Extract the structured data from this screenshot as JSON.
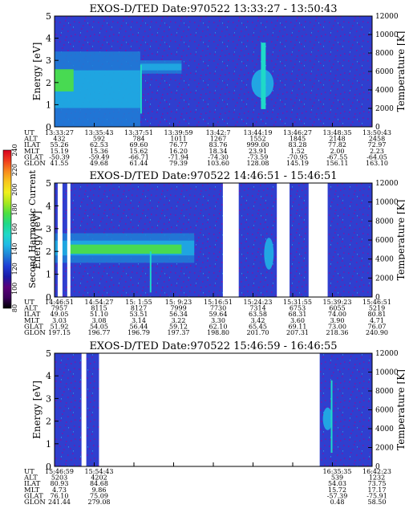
{
  "chart_data": [
    {
      "type": "heatmap",
      "title": "EXOS-D/TED   Date:970522   13:33:27 - 13:50:43",
      "ylabel": "Energy [eV]",
      "ylim": [
        0,
        5
      ],
      "yticks": [
        0,
        1,
        2,
        3,
        4,
        5
      ],
      "y2label": "Temperature [K]",
      "y2lim": [
        0,
        12000
      ],
      "y2ticks": [
        0,
        2000,
        4000,
        6000,
        8000,
        10000,
        12000
      ],
      "x": [
        "13:33:27",
        "13:35:43",
        "13:37:51",
        "13:39:59",
        "13:42:7",
        "13:44:19",
        "13:46:27",
        "13:48:35",
        "13:50:43"
      ],
      "rows": [
        {
          "name": "UT",
          "values": [
            "13:33:27",
            "13:35:43",
            "13:37:51",
            "13:39:59",
            "13:42:7",
            "13:44:19",
            "13:46:27",
            "13:48:35",
            "13:50:43"
          ]
        },
        {
          "name": "ALT",
          "values": [
            "432",
            "592",
            "784",
            "1011",
            "1267",
            "1552",
            "1845",
            "2148",
            "2458"
          ]
        },
        {
          "name": "ILAT",
          "values": [
            "55.26",
            "62.53",
            "69.60",
            "76.77",
            "83.76",
            "999.00",
            "83.28",
            "77.82",
            "72.97"
          ]
        },
        {
          "name": "MLT",
          "values": [
            "15.19",
            "15.36",
            "15.62",
            "16.20",
            "18.34",
            "23.91",
            "1.52",
            "2.00",
            "2.23"
          ]
        },
        {
          "name": "GLAT",
          "values": [
            "-50.39",
            "-59.49",
            "-66.71",
            "-71.94",
            "-74.30",
            "-73.59",
            "-70.95",
            "-67.55",
            "-64.05"
          ]
        },
        {
          "name": "GLON",
          "values": [
            "41.55",
            "49.68",
            "61.44",
            "79.39",
            "103.60",
            "128.08",
            "145.19",
            "156.11",
            "163.10"
          ]
        }
      ],
      "features": [
        {
          "kind": "band",
          "t0": 0.0,
          "t1": 0.27,
          "e0": 0.0,
          "e1": 3.4
        },
        {
          "kind": "core",
          "t0": 0.0,
          "t1": 0.06,
          "e0": 1.6,
          "e1": 2.6
        },
        {
          "kind": "band",
          "t0": 0.27,
          "t1": 0.4,
          "e0": 2.4,
          "e1": 3.0
        },
        {
          "kind": "blob",
          "t0": 0.62,
          "t1": 0.69,
          "e0": 1.3,
          "e1": 2.6
        },
        {
          "kind": "spike",
          "t0": 0.65,
          "t1": 0.665,
          "e0": 0.8,
          "e1": 3.8
        },
        {
          "kind": "spike",
          "t0": 0.27,
          "t1": 0.275,
          "e0": 0.6,
          "e1": 2.8
        }
      ],
      "gaps": []
    },
    {
      "type": "heatmap",
      "title": "EXOS-D/TED   Date:970522   14:46:51 - 15:46:51",
      "ylabel": "Energy [eV]",
      "ylim": [
        0,
        5
      ],
      "yticks": [
        0,
        1,
        2,
        3,
        4,
        5
      ],
      "y2label": "Temperature [K]",
      "y2lim": [
        0,
        12000
      ],
      "y2ticks": [
        0,
        2000,
        4000,
        6000,
        8000,
        10000,
        12000
      ],
      "x": [
        "14:46:51",
        "14:54:27",
        "15: 1:55",
        "15: 9:23",
        "15:16:51",
        "15:24:23",
        "15:31:55",
        "15:39:23",
        "15:46:51"
      ],
      "rows": [
        {
          "name": "UT",
          "values": [
            "14:46:51",
            "14:54:27",
            "15: 1:55",
            "15: 9:23",
            "15:16:51",
            "15:24:23",
            "15:31:55",
            "15:39:23",
            "15:46:51"
          ]
        },
        {
          "name": "ALT",
          "values": [
            "7957",
            "8115",
            "8127",
            "7999",
            "7730",
            "7314",
            "6753",
            "6055",
            "5219"
          ]
        },
        {
          "name": "ILAT",
          "values": [
            "49.05",
            "51.10",
            "53.51",
            "56.34",
            "59.64",
            "63.58",
            "68.31",
            "74.00",
            "80.81"
          ]
        },
        {
          "name": "MLT",
          "values": [
            "3.03",
            "3.08",
            "3.14",
            "3.22",
            "3.30",
            "3.42",
            "3.60",
            "3.90",
            "4.71"
          ]
        },
        {
          "name": "GLAT",
          "values": [
            "51.92",
            "54.05",
            "56.44",
            "59.12",
            "62.10",
            "65.45",
            "69.11",
            "73.00",
            "76.07"
          ]
        },
        {
          "name": "GLON",
          "values": [
            "197.15",
            "196.77",
            "196.79",
            "197.37",
            "198.80",
            "201.70",
            "207.31",
            "218.36",
            "240.90"
          ]
        }
      ],
      "features": [
        {
          "kind": "band",
          "t0": 0.0,
          "t1": 0.44,
          "e0": 1.5,
          "e1": 2.8
        },
        {
          "kind": "core",
          "t0": 0.04,
          "t1": 0.4,
          "e0": 1.9,
          "e1": 2.3
        },
        {
          "kind": "spike",
          "t0": 0.3,
          "t1": 0.305,
          "e0": 0.2,
          "e1": 2.0
        },
        {
          "kind": "blob",
          "t0": 0.66,
          "t1": 0.69,
          "e0": 1.2,
          "e1": 2.6
        }
      ],
      "gaps": [
        [
          0.01,
          0.025
        ],
        [
          0.04,
          0.05
        ],
        [
          0.53,
          0.58
        ],
        [
          0.7,
          0.74
        ],
        [
          0.8,
          0.86
        ]
      ],
      "colorbar": {
        "label": "Second Harmonic Current",
        "ticks": [
          80,
          100,
          120,
          140,
          160,
          180,
          200,
          220,
          240
        ],
        "colors": [
          "#000000",
          "#3a005a",
          "#5a007a",
          "#1a1aa8",
          "#1f3dd6",
          "#1f7fd6",
          "#1fb9e6",
          "#1fd9c8",
          "#1fd98a",
          "#4ce042",
          "#a8e81e",
          "#f0f01e",
          "#f8c81e",
          "#f88a1e",
          "#f03c1e",
          "#d8001e"
        ]
      }
    },
    {
      "type": "heatmap",
      "title": "EXOS-D/TED   Date:970522   15:46:59 - 16:46:55",
      "ylabel": "Energy [eV]",
      "ylim": [
        0,
        5
      ],
      "yticks": [
        0,
        1,
        2,
        3,
        4,
        5
      ],
      "y2label": "Temperature [K]",
      "y2lim": [
        0,
        12000
      ],
      "y2ticks": [
        0,
        2000,
        4000,
        6000,
        8000,
        10000,
        12000
      ],
      "x": [
        "15:46:59",
        "15:54:43",
        "",
        "",
        "",
        "",
        "",
        "16:35:35",
        "16:42:23"
      ],
      "rows": [
        {
          "name": "UT",
          "values": [
            "15:46:59",
            "15:54:43",
            "",
            "",
            "",
            "",
            "",
            "16:35:35",
            "16:42:23"
          ]
        },
        {
          "name": "ALT",
          "values": [
            "5203",
            "4202",
            "",
            "",
            "",
            "",
            "",
            "539",
            "1232"
          ]
        },
        {
          "name": "ILAT",
          "values": [
            "80.93",
            "84.68",
            "",
            "",
            "",
            "",
            "",
            "54.03",
            "73.75"
          ]
        },
        {
          "name": "MLT",
          "values": [
            "4.73",
            "9.86",
            "",
            "",
            "",
            "",
            "",
            "15.72",
            "17.17"
          ]
        },
        {
          "name": "GLAT",
          "values": [
            "76.10",
            "75.09",
            "",
            "",
            "",
            "",
            "",
            "-57.39",
            "-75.91"
          ]
        },
        {
          "name": "GLON",
          "values": [
            "241.44",
            "279.08",
            "",
            "",
            "",
            "",
            "",
            "0.48",
            "58.50"
          ]
        }
      ],
      "features": [
        {
          "kind": "blob",
          "t0": 0.845,
          "t1": 0.875,
          "e0": 1.6,
          "e1": 2.6
        },
        {
          "kind": "spike",
          "t0": 0.87,
          "t1": 0.875,
          "e0": 0.6,
          "e1": 3.8
        }
      ],
      "segments": [
        [
          0.0,
          0.14
        ],
        [
          0.835,
          1.0
        ]
      ],
      "gaps": [
        [
          0.085,
          0.1
        ]
      ]
    }
  ]
}
